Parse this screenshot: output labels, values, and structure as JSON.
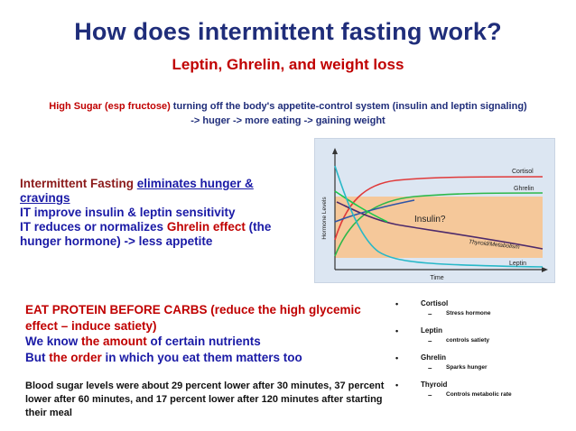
{
  "title": "How does intermittent fasting work?",
  "subtitle": "Leptin, Ghrelin, and weight loss",
  "intro": {
    "red_part": "High Sugar (esp fructose)",
    "rest_line1": " turning off the body's appetite-control system (insulin and leptin signaling)",
    "line2": "-> huger -> more eating -> gaining weight"
  },
  "left_block": {
    "p1_a": "Intermittent Fasting ",
    "p1_b": "eliminates hunger & cravings",
    "p2": "IT improve insulin & leptin sensitivity",
    "p3_a": "IT reduces or normalizes ",
    "p3_b": "Ghrelin effect",
    "p3_c": " (the hunger hormone) -> less appetite"
  },
  "chart": {
    "y_label": "Hormone Levels",
    "x_label": "Time",
    "labels": {
      "cortisol": "Cortisol",
      "ghrelin": "Ghrelin",
      "insulin": "Insulin?",
      "thyroid": "Thyroid/Metabolism",
      "leptin": "Leptin"
    },
    "colors": {
      "cortisol": "#e03a3a",
      "ghrelin": "#2eb84a",
      "blue_line": "#2f55a6",
      "green_line": "#1ac84a",
      "thyroid": "#4d2a6b",
      "leptin": "#28b8c8",
      "band": "#f5c89a"
    }
  },
  "protein_block": {
    "l1": "EAT PROTEIN BEFORE CARBS (reduce the high glycemic effect – induce satiety)",
    "l2_a": "We know ",
    "l2_b": "the amount",
    "l2_c": " of certain nutrients",
    "l3_a": "But ",
    "l3_b": "the order",
    "l3_c": " in which you eat them matters too"
  },
  "blood_text": "Blood sugar levels were about 29 percent lower after 30 minutes, 37 percent lower after 60 minutes, and 17 percent lower after 120 minutes after starting their meal",
  "hormone_list": [
    {
      "name": "Cortisol",
      "desc": "Stress hormone"
    },
    {
      "name": "Leptin",
      "desc": "controls satiety"
    },
    {
      "name": "Ghrelin",
      "desc": "Sparks hunger"
    },
    {
      "name": "Thyroid",
      "desc": "Controls metabolic rate"
    }
  ],
  "glyphs": {
    "bullet": "•",
    "dash": "–"
  }
}
